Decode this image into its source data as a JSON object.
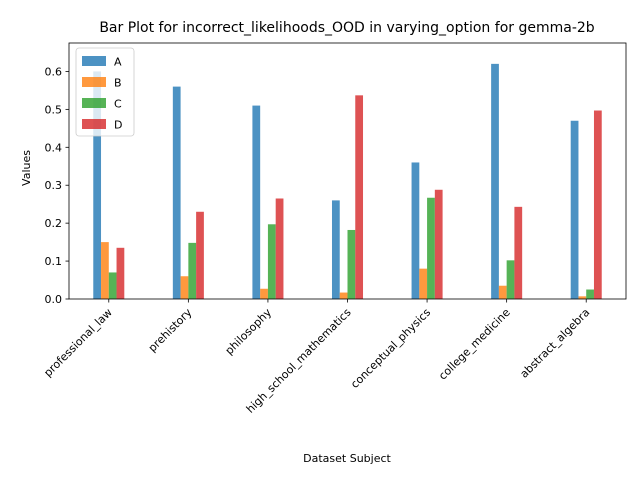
{
  "chart_data": {
    "type": "bar",
    "title": "Bar Plot for incorrect_likelihoods_OOD in varying_option for gemma-2b",
    "xlabel": "Dataset Subject",
    "ylabel": "Values",
    "ylim": [
      0,
      0.675
    ],
    "yticks": [
      "0.0",
      "0.1",
      "0.2",
      "0.3",
      "0.4",
      "0.5",
      "0.6"
    ],
    "grid": false,
    "legend_position": "top-left",
    "categories": [
      "professional_law",
      "prehistory",
      "philosophy",
      "high_school_mathematics",
      "conceptual_physics",
      "college_medicine",
      "abstract_algebra"
    ],
    "series": [
      {
        "name": "A",
        "color": "#1f77b4",
        "values": [
          0.6,
          0.56,
          0.51,
          0.26,
          0.36,
          0.62,
          0.47
        ]
      },
      {
        "name": "B",
        "color": "#ff7f0e",
        "values": [
          0.15,
          0.06,
          0.027,
          0.017,
          0.08,
          0.035,
          0.007
        ]
      },
      {
        "name": "C",
        "color": "#2ca02c",
        "values": [
          0.07,
          0.148,
          0.197,
          0.182,
          0.267,
          0.102,
          0.025
        ]
      },
      {
        "name": "D",
        "color": "#d62728",
        "values": [
          0.135,
          0.23,
          0.265,
          0.537,
          0.288,
          0.243,
          0.497
        ]
      }
    ]
  }
}
